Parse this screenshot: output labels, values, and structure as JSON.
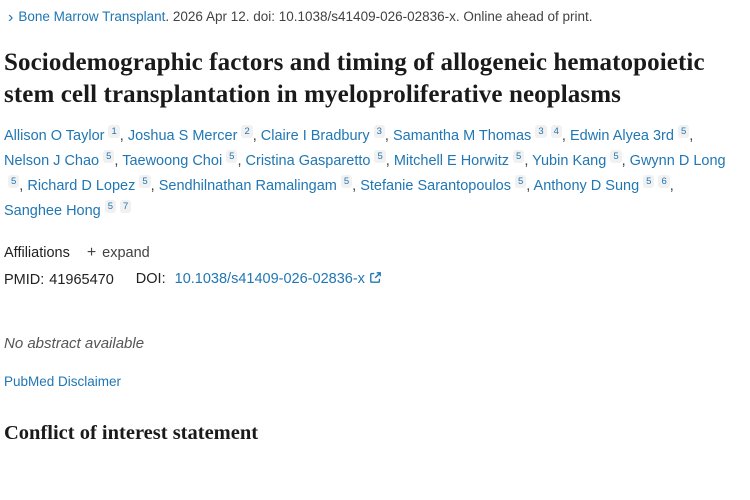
{
  "breadcrumb": {
    "chevron": "›",
    "journal": "Bone Marrow Transplant",
    "citation": ". 2026 Apr 12. doi: 10.1038/s41409-026-02836-x. Online ahead of print."
  },
  "title": "Sociodemographic factors and timing of allogeneic hematopoietic stem cell transplantation in myeloproliferative neoplasms",
  "authors": [
    {
      "name": "Allison O Taylor",
      "sups": [
        "1"
      ]
    },
    {
      "name": "Joshua S Mercer",
      "sups": [
        "2"
      ]
    },
    {
      "name": "Claire I Bradbury",
      "sups": [
        "3"
      ]
    },
    {
      "name": "Samantha M Thomas",
      "sups": [
        "3",
        "4"
      ]
    },
    {
      "name": "Edwin Alyea 3rd",
      "sups": [
        "5"
      ]
    },
    {
      "name": "Nelson J Chao",
      "sups": [
        "5"
      ]
    },
    {
      "name": "Taewoong Choi",
      "sups": [
        "5"
      ]
    },
    {
      "name": "Cristina Gasparetto",
      "sups": [
        "5"
      ]
    },
    {
      "name": "Mitchell E Horwitz",
      "sups": [
        "5"
      ]
    },
    {
      "name": "Yubin Kang",
      "sups": [
        "5"
      ]
    },
    {
      "name": "Gwynn D Long",
      "sups": [
        "5"
      ]
    },
    {
      "name": "Richard D Lopez",
      "sups": [
        "5"
      ]
    },
    {
      "name": "Sendhilnathan Ramalingam",
      "sups": [
        "5"
      ]
    },
    {
      "name": "Stefanie Sarantopoulos",
      "sups": [
        "5"
      ]
    },
    {
      "name": "Anthony D Sung",
      "sups": [
        "5",
        "6"
      ]
    },
    {
      "name": "Sanghee Hong",
      "sups": [
        "5",
        "7"
      ]
    }
  ],
  "affiliations": {
    "label": "Affiliations",
    "expand_icon": "+",
    "expand_label": "expand"
  },
  "ids": {
    "pmid_label": "PMID:",
    "pmid": "41965470",
    "doi_label": "DOI:",
    "doi": "10.1038/s41409-026-02836-x"
  },
  "abstract": {
    "none_text": "No abstract available"
  },
  "disclaimer": {
    "label": "PubMed Disclaimer"
  },
  "coi": {
    "heading": "Conflict of interest statement"
  },
  "colors": {
    "link_blue": "#2077b4",
    "text_dark": "#212121",
    "text_mid": "#424242",
    "sup_bg": "#f1f1f1"
  }
}
